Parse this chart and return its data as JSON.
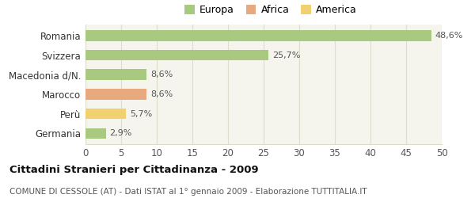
{
  "categories": [
    "Romania",
    "Svizzera",
    "Macedonia d/N.",
    "Marocco",
    "Perù",
    "Germania"
  ],
  "values": [
    48.6,
    25.7,
    8.6,
    8.6,
    5.7,
    2.9
  ],
  "labels": [
    "48,6%",
    "25,7%",
    "8,6%",
    "8,6%",
    "5,7%",
    "2,9%"
  ],
  "colors": [
    "#a8c97f",
    "#a8c97f",
    "#a8c97f",
    "#e8a97f",
    "#f0d070",
    "#a8c97f"
  ],
  "legend": [
    {
      "label": "Europa",
      "color": "#a8c97f"
    },
    {
      "label": "Africa",
      "color": "#e8a97f"
    },
    {
      "label": "America",
      "color": "#f0d070"
    }
  ],
  "xlim": [
    0,
    50
  ],
  "xticks": [
    0,
    5,
    10,
    15,
    20,
    25,
    30,
    35,
    40,
    45,
    50
  ],
  "title": "Cittadini Stranieri per Cittadinanza - 2009",
  "subtitle": "COMUNE DI CESSOLE (AT) - Dati ISTAT al 1° gennaio 2009 - Elaborazione TUTTITALIA.IT",
  "background_color": "#ffffff",
  "bar_background": "#f5f5ee",
  "grid_color": "#ddddcc"
}
